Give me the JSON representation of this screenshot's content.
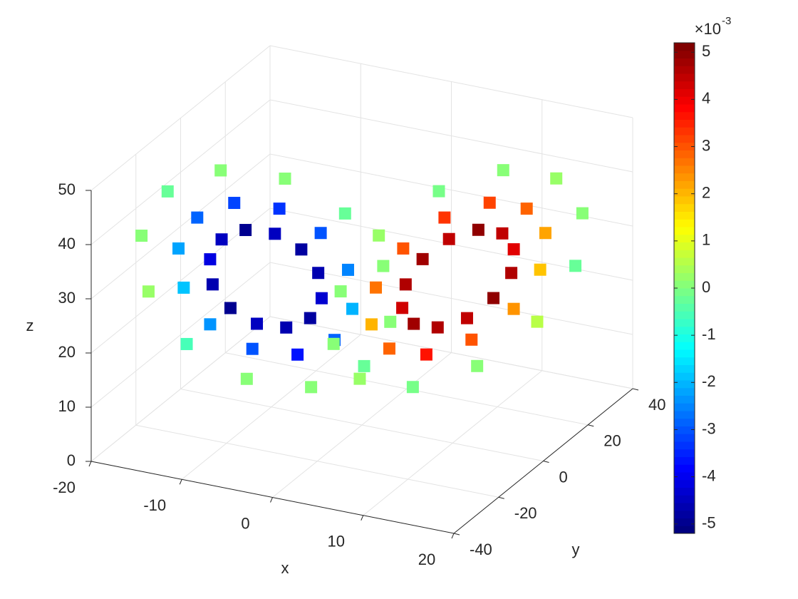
{
  "chart_data": {
    "type": "scatter3d",
    "xlabel": "x",
    "ylabel": "y",
    "zlabel": "z",
    "xlim": [
      -20,
      20
    ],
    "ylim": [
      -40,
      40
    ],
    "zlim": [
      0,
      50
    ],
    "xticks": [
      -20,
      -10,
      0,
      10,
      20
    ],
    "yticks": [
      -40,
      -20,
      0,
      20,
      40
    ],
    "zticks": [
      0,
      10,
      20,
      30,
      40,
      50
    ],
    "grid": true,
    "colormap": "jet",
    "clim": [
      -5.2,
      5.2
    ],
    "cticks": [
      -5,
      -4,
      -3,
      -2,
      -1,
      0,
      1,
      2,
      3,
      4,
      5
    ],
    "colorbar_multiplier": "×10",
    "colorbar_exponent": "-3",
    "x": [
      0.5,
      -2.7,
      -7.5,
      -12.5,
      -16.5,
      -18.3,
      -17.5,
      -14.3,
      -9.5,
      -4.5,
      -0.5,
      1.3,
      -2.2,
      -4.5,
      -7.8,
      -11.3,
      -14.1,
      -15.4,
      -14.8,
      -12.6,
      -9.2,
      -5.7,
      -2.9,
      -1.7,
      -4.5,
      -5.9,
      -8.0,
      -10.3,
      -12.1,
      -12.9,
      -12.6,
      -11.1,
      -9.0,
      -6.7,
      -4.9,
      -4.1,
      -0.5,
      2.7,
      7.5,
      12.5,
      16.5,
      18.3,
      17.5,
      14.3,
      9.5,
      4.5,
      0.5,
      -1.3,
      2.2,
      4.5,
      7.8,
      11.3,
      14.1,
      15.4,
      14.8,
      12.6,
      9.2,
      5.7,
      2.9,
      1.7,
      4.5,
      5.9,
      8.0,
      10.3,
      12.1,
      12.9,
      12.6,
      11.1,
      9.0,
      6.7,
      4.9,
      4.1
    ],
    "y": [
      7.5,
      3.4,
      -4.0,
      -12.5,
      -20.0,
      -24.4,
      -24.5,
      -20.4,
      -13.0,
      -4.5,
      3.0,
      7.4,
      2.7,
      -0.2,
      -5.3,
      -11.3,
      -16.5,
      -19.6,
      -19.7,
      -16.8,
      -11.7,
      -5.7,
      -0.5,
      2.6,
      -1.3,
      -3.2,
      -6.5,
      -10.3,
      -13.7,
      -15.6,
      -15.7,
      -13.8,
      -10.5,
      -6.7,
      -3.3,
      -1.4,
      -7.5,
      -3.4,
      4.0,
      12.5,
      20.0,
      24.4,
      24.5,
      20.4,
      13.0,
      4.5,
      -3.0,
      -7.4,
      -2.7,
      0.2,
      5.3,
      11.3,
      16.5,
      19.6,
      19.7,
      16.8,
      11.7,
      5.7,
      0.5,
      -2.6,
      1.3,
      3.2,
      6.5,
      10.3,
      13.7,
      15.6,
      15.7,
      13.8,
      10.5,
      6.7,
      3.3,
      1.4
    ],
    "z": [
      27,
      37,
      44.3,
      47,
      44.3,
      37,
      27,
      17,
      9.7,
      7,
      9.7,
      17,
      27,
      34,
      39.1,
      41,
      39.1,
      34,
      27,
      20,
      14.9,
      13,
      14.9,
      20,
      27,
      31.5,
      34.8,
      36,
      34.8,
      31.5,
      27,
      22.5,
      19.2,
      18,
      19.2,
      22.5,
      27,
      37,
      44.3,
      47,
      44.3,
      37,
      27,
      17,
      9.7,
      7,
      9.7,
      17,
      27,
      34,
      39.1,
      41,
      39.1,
      34,
      27,
      20,
      14.9,
      13,
      14.9,
      20,
      27,
      31.5,
      34.8,
      36,
      34.8,
      31.5,
      27,
      22.5,
      19.2,
      18,
      19.2,
      22.5
    ],
    "c": [
      0,
      -0.2,
      0.1,
      0,
      -0.3,
      0,
      0.2,
      -0.5,
      0,
      0.1,
      -0.2,
      0,
      -2.6,
      -3,
      -3.4,
      -3.2,
      -2.8,
      -2.2,
      -1.8,
      -2.4,
      -3,
      -3.6,
      -2.9,
      -2,
      -4.6,
      -4.8,
      -4.4,
      -4.9,
      -4.5,
      -4.2,
      -4.7,
      -5,
      -4.4,
      -4.6,
      -4.8,
      -4.3,
      0,
      0.2,
      -0.1,
      0,
      0.3,
      0,
      -0.2,
      0.5,
      0,
      -0.1,
      0.2,
      0,
      2.6,
      3,
      3.4,
      3.2,
      2.8,
      2.2,
      1.8,
      2.4,
      3,
      3.6,
      2.9,
      2,
      4.6,
      4.8,
      4.4,
      4.9,
      4.5,
      4.2,
      4.7,
      5,
      4.4,
      4.6,
      4.8,
      4.3
    ]
  }
}
